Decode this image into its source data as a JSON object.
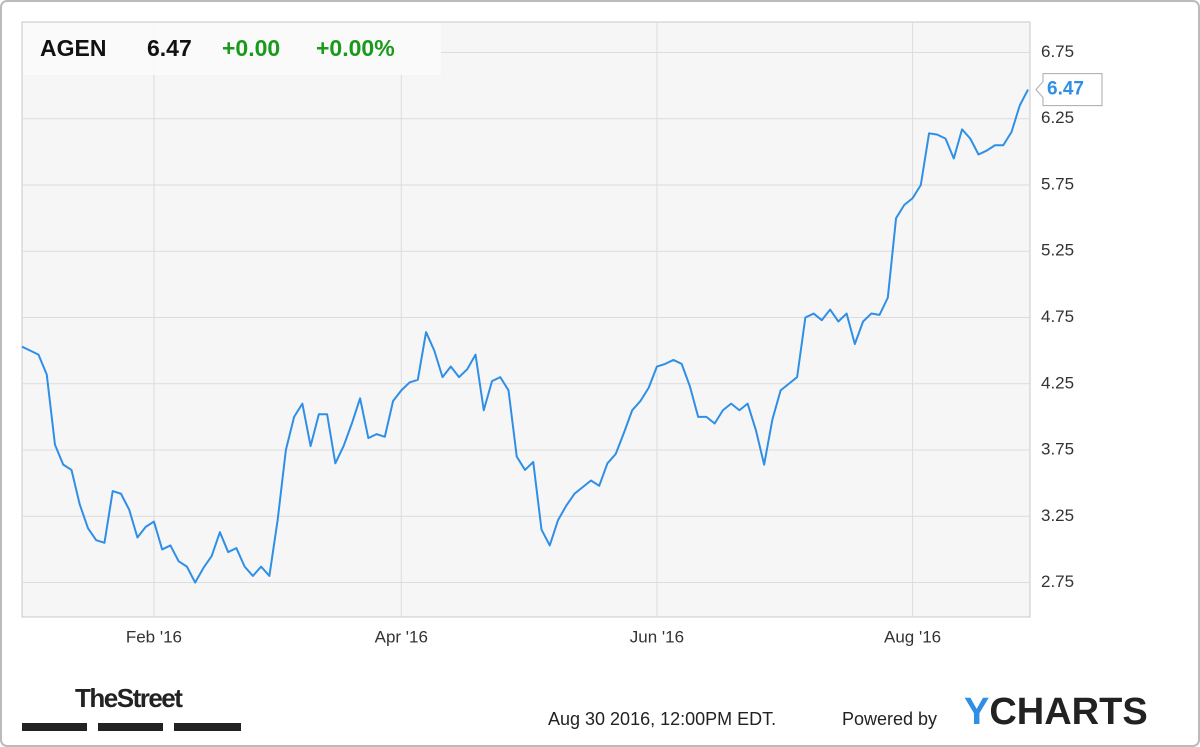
{
  "header": {
    "ticker": "AGEN",
    "price": 6.47,
    "change": "+0.00",
    "change_percent": "+0.00%"
  },
  "footer": {
    "source": "TheStreet",
    "timestamp": "Aug 30 2016, 12:00PM EDT.",
    "powered_by": "Powered by",
    "brand": "YCHARTS"
  },
  "chart_data": {
    "type": "line",
    "color": "#2f8fe6",
    "grid": true,
    "categories": [
      null,
      null,
      null,
      null,
      null,
      null,
      null,
      null,
      null,
      null,
      null,
      null,
      null,
      null,
      null,
      null,
      "Feb '16",
      null,
      null,
      null,
      null,
      null,
      null,
      null,
      null,
      null,
      null,
      null,
      null,
      null,
      null,
      null,
      null,
      null,
      null,
      null,
      null,
      null,
      null,
      null,
      null,
      null,
      null,
      null,
      null,
      null,
      "Apr '16",
      null,
      null,
      null,
      null,
      null,
      null,
      null,
      null,
      null,
      null,
      null,
      null,
      null,
      null,
      null,
      null,
      null,
      null,
      null,
      null,
      null,
      null,
      null,
      null,
      null,
      null,
      null,
      null,
      null,
      null,
      "Jun '16",
      null,
      null,
      null,
      null,
      null,
      null,
      null,
      null,
      null,
      null,
      null,
      null,
      null,
      null,
      null,
      null,
      null,
      null,
      null,
      null,
      null,
      null,
      null,
      null,
      null,
      null,
      null,
      null,
      null,
      null,
      "Aug '16",
      null,
      null,
      null,
      null,
      null,
      null,
      null,
      null,
      null,
      null,
      null,
      null,
      null,
      null
    ],
    "values": [
      4.53,
      4.5,
      4.47,
      4.32,
      3.79,
      3.64,
      3.6,
      3.34,
      3.16,
      3.07,
      3.05,
      3.44,
      3.42,
      3.3,
      3.09,
      3.17,
      3.21,
      3.0,
      3.03,
      2.91,
      2.87,
      2.75,
      2.86,
      2.95,
      3.13,
      2.98,
      3.01,
      2.87,
      2.8,
      2.87,
      2.8,
      3.22,
      3.75,
      4.0,
      4.1,
      3.78,
      4.02,
      4.02,
      3.65,
      3.78,
      3.95,
      4.14,
      3.84,
      3.87,
      3.85,
      4.12,
      4.2,
      4.26,
      4.28,
      4.64,
      4.5,
      4.3,
      4.38,
      4.3,
      4.36,
      4.47,
      4.05,
      4.27,
      4.3,
      4.2,
      3.7,
      3.6,
      3.66,
      3.15,
      3.03,
      3.22,
      3.33,
      3.42,
      3.47,
      3.52,
      3.48,
      3.65,
      3.72,
      3.88,
      4.05,
      4.12,
      4.22,
      4.38,
      4.4,
      4.43,
      4.4,
      4.23,
      4.0,
      4.0,
      3.95,
      4.05,
      4.1,
      4.05,
      4.1,
      3.9,
      3.64,
      3.98,
      4.2,
      4.25,
      4.3,
      4.75,
      4.78,
      4.73,
      4.81,
      4.72,
      4.78,
      4.55,
      4.72,
      4.78,
      4.77,
      4.9,
      5.5,
      5.6,
      5.65,
      5.75,
      6.14,
      6.13,
      6.1,
      5.95,
      6.17,
      6.1,
      5.98,
      6.01,
      6.05,
      6.05,
      6.15,
      6.35,
      6.47
    ],
    "ylim": [
      2.49,
      6.98
    ],
    "yticks": [
      2.75,
      3.25,
      3.75,
      4.25,
      4.75,
      5.25,
      5.75,
      6.25,
      6.75
    ]
  }
}
